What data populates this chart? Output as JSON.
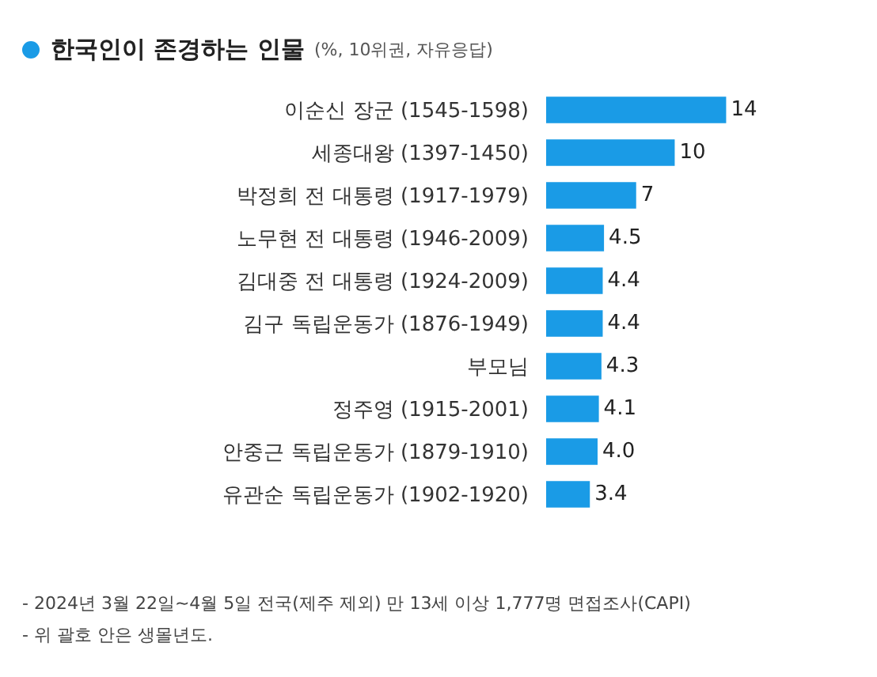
{
  "chart_data": {
    "type": "bar",
    "orientation": "horizontal",
    "title": "한국인이 존경하는 인물",
    "subtitle": "(%, 10위권, 자유응답)",
    "categories": [
      "이순신 장군 (1545-1598)",
      "세종대왕 (1397-1450)",
      "박정희 전 대통령 (1917-1979)",
      "노무현 전 대통령 (1946-2009)",
      "김대중 전 대통령 (1924-2009)",
      "김구 독립운동가 (1876-1949)",
      "부모님",
      "정주영 (1915-2001)",
      "안중근 독립운동가 (1879-1910)",
      "유관순 독립운동가 (1902-1920)"
    ],
    "values": [
      14,
      10,
      7,
      4.5,
      4.4,
      4.4,
      4.3,
      4.1,
      4.0,
      3.4
    ],
    "value_labels": [
      "14",
      "10",
      "7",
      "4.5",
      "4.4",
      "4.4",
      "4.3",
      "4.1",
      "4.0",
      "3.4"
    ],
    "color": "#1a9be6",
    "annotations": [
      "- 2024년 3월 22일~4월 5일 전국(제주 제외) 만 13세 이상 1,777명 면접조사(CAPI)",
      "- 위 괄호 안은 생몰년도."
    ]
  }
}
